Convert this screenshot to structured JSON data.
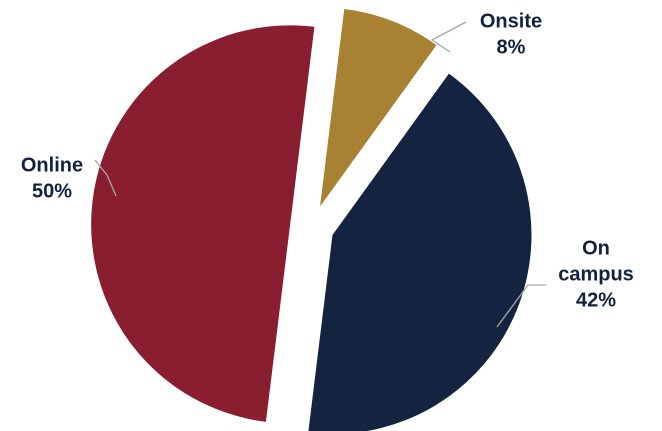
{
  "chart_data": {
    "type": "pie",
    "title": "",
    "slices": [
      {
        "name": "Onsite",
        "label_lines": [
          "Onsite",
          "8%"
        ],
        "value": 8,
        "color": "#a88132"
      },
      {
        "name": "On campus",
        "label_lines": [
          "On",
          "campus",
          "42%"
        ],
        "value": 42,
        "color": "#14233f"
      },
      {
        "name": "Online",
        "label_lines": [
          "Online",
          "50%"
        ],
        "value": 50,
        "color": "#891e31"
      }
    ],
    "exploded": true,
    "legend": "none",
    "label_position": "outside with leader lines"
  }
}
